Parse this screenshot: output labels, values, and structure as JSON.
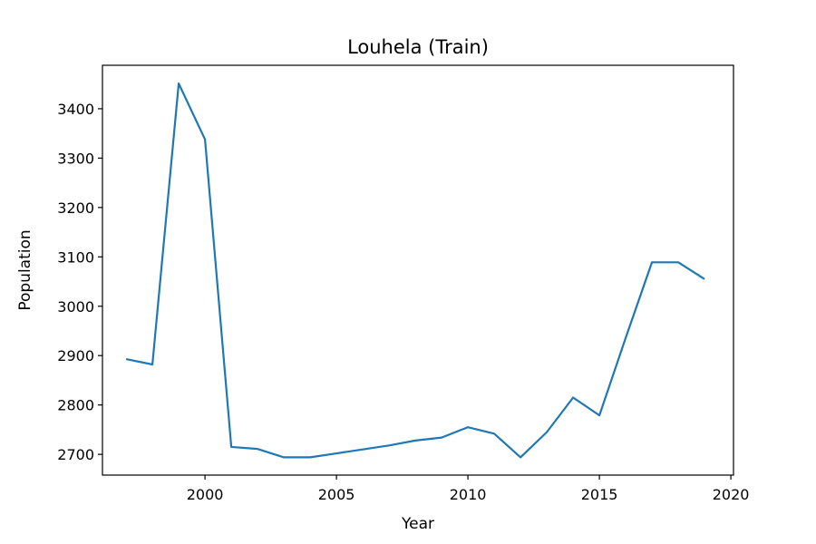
{
  "chart_data": {
    "type": "line",
    "title": "Louhela (Train)",
    "xlabel": "Year",
    "ylabel": "Population",
    "xlim": [
      1996.1,
      2020.1
    ],
    "ylim": [
      2658,
      3488
    ],
    "xticks": [
      2000,
      2005,
      2010,
      2015,
      2020
    ],
    "yticks": [
      2700,
      2800,
      2900,
      3000,
      3100,
      3200,
      3300,
      3400
    ],
    "grid": false,
    "series": [
      {
        "color": "#1f77b4",
        "x": [
          1997,
          1998,
          1999,
          2000,
          2001,
          2002,
          2003,
          2004,
          2005,
          2006,
          2007,
          2008,
          2009,
          2010,
          2011,
          2012,
          2013,
          2014,
          2015,
          2016,
          2017,
          2018,
          2019
        ],
        "values": [
          2893,
          2882,
          3451,
          3338,
          2715,
          2711,
          2694,
          2694,
          2702,
          2710,
          2718,
          2728,
          2734,
          2755,
          2742,
          2694,
          2745,
          2815,
          2779,
          2936,
          3089,
          3089,
          3055
        ]
      }
    ]
  }
}
